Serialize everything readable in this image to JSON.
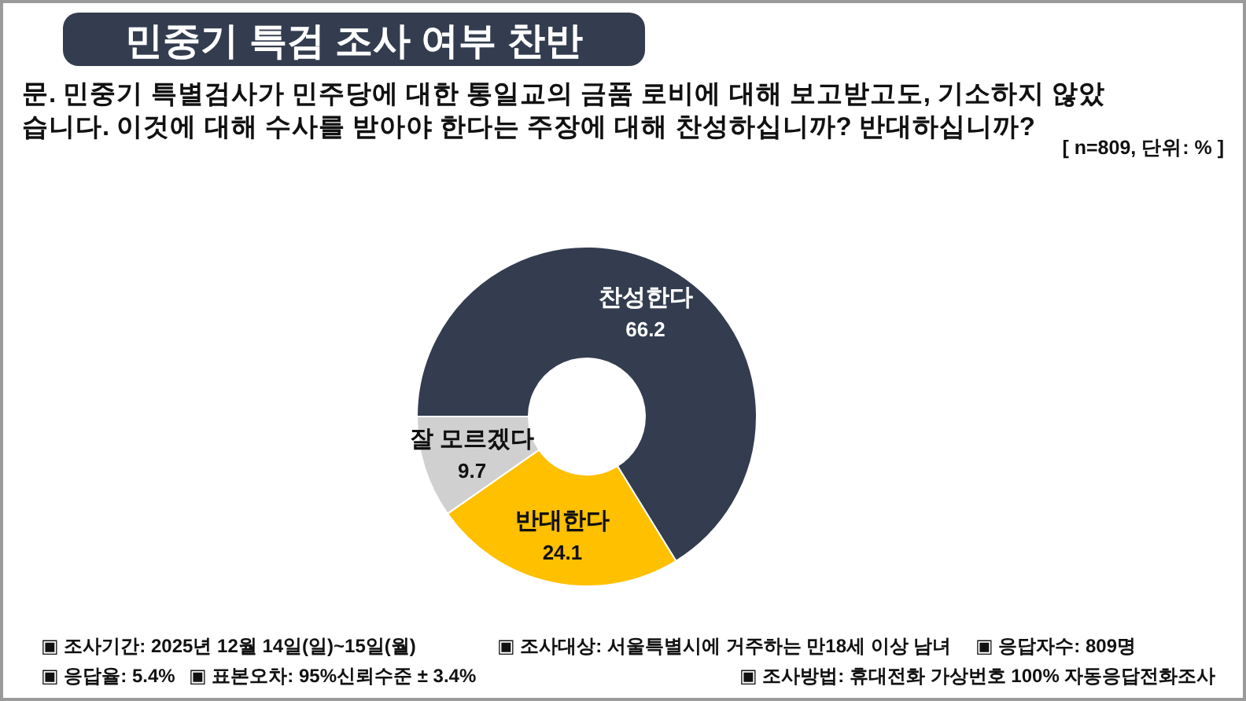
{
  "chart_data": {
    "type": "donut",
    "title": "민중기 특검 조사 여부 찬반",
    "subtitle": "문. 민중기 특별검사가 민주당에 대한 통일교의 금품 로비에 대해 보고받고도, 기소하지 않았습니다. 이것에 대해 수사를 받아야 한다는 주장에 대해 찬성하십니까? 반대하십니까?",
    "categories": [
      "찬성한다",
      "반대한다",
      "잘 모르겠다"
    ],
    "values": [
      66.2,
      24.1,
      9.7
    ],
    "colors": [
      "#333d4f",
      "#ffc000",
      "#d0d0d0"
    ],
    "data_labels": true,
    "annotations": [
      "[ n=809, 단위: % ]",
      "▣ 조사기간: 2025년 12월 14일(일)~15일(월)",
      "▣ 조사대상: 서울특별시에 거주하는 만18세 이상 남녀",
      "▣ 응답자수: 809명",
      "▣ 응답율: 5.4%",
      "▣ 표본오차: 95%신뢰수준 ± 3.4%",
      "▣ 조사방법: 휴대전화 가상번호 100% 자동응답전화조사"
    ]
  }
}
